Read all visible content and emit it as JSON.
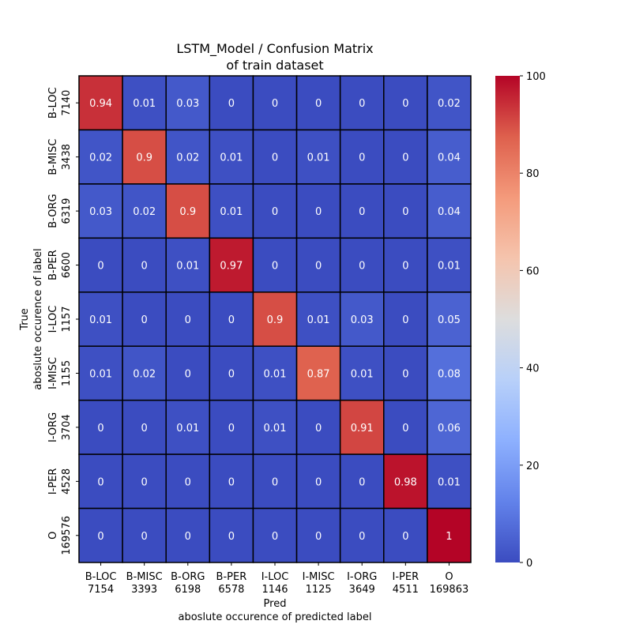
{
  "chart_data": {
    "type": "heatmap",
    "title_line1": "LSTM_Model / Confusion Matrix",
    "title_line2": "of train dataset",
    "xlabel_line1": "Pred",
    "xlabel_line2": "aboslute occurence of predicted label",
    "ylabel_line1": "True",
    "ylabel_line2": "aboslute occurence of label",
    "x_categories": [
      "B-LOC",
      "B-MISC",
      "B-ORG",
      "B-PER",
      "I-LOC",
      "I-MISC",
      "I-ORG",
      "I-PER",
      "O"
    ],
    "x_counts": [
      "7154",
      "3393",
      "6198",
      "6578",
      "1146",
      "1125",
      "3649",
      "4511",
      "169863"
    ],
    "y_categories": [
      "B-LOC",
      "B-MISC",
      "B-ORG",
      "B-PER",
      "I-LOC",
      "I-MISC",
      "I-ORG",
      "I-PER",
      "O"
    ],
    "y_counts": [
      "7140",
      "3438",
      "6319",
      "6600",
      "1157",
      "1155",
      "3704",
      "4528",
      "169576"
    ],
    "values": [
      [
        0.94,
        0.01,
        0.03,
        0,
        0,
        0,
        0,
        0,
        0.02
      ],
      [
        0.02,
        0.9,
        0.02,
        0.01,
        0,
        0.01,
        0,
        0,
        0.04
      ],
      [
        0.03,
        0.02,
        0.9,
        0.01,
        0,
        0,
        0,
        0,
        0.04
      ],
      [
        0,
        0,
        0.01,
        0.97,
        0,
        0,
        0,
        0,
        0.01
      ],
      [
        0.01,
        0,
        0,
        0,
        0.9,
        0.01,
        0.03,
        0,
        0.05
      ],
      [
        0.01,
        0.02,
        0,
        0,
        0.01,
        0.87,
        0.01,
        0,
        0.08
      ],
      [
        0,
        0,
        0.01,
        0,
        0.01,
        0,
        0.91,
        0,
        0.06
      ],
      [
        0,
        0,
        0,
        0,
        0,
        0,
        0,
        0.98,
        0.01
      ],
      [
        0,
        0,
        0,
        0,
        0,
        0,
        0,
        0,
        1
      ]
    ],
    "colorbar": {
      "colormap": "coolwarm",
      "range": [
        0,
        100
      ],
      "ticks": [
        0,
        20,
        40,
        60,
        80,
        100
      ]
    },
    "grid": true
  }
}
